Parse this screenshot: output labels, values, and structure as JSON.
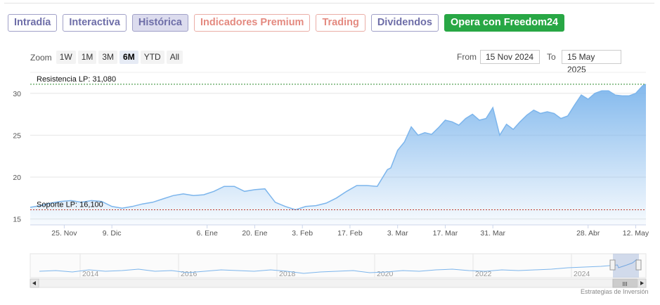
{
  "tabs": [
    {
      "label": "Intradía",
      "style": "purple"
    },
    {
      "label": "Interactiva",
      "style": "purple"
    },
    {
      "label": "Histórica",
      "style": "purple active"
    },
    {
      "label": "Indicadores Premium",
      "style": "salmon"
    },
    {
      "label": "Trading",
      "style": "salmon"
    },
    {
      "label": "Dividendos",
      "style": "purple"
    },
    {
      "label": "Opera con Freedom24",
      "style": "green"
    }
  ],
  "zoom": {
    "label": "Zoom",
    "buttons": [
      "1W",
      "1M",
      "3M",
      "6M",
      "YTD",
      "All"
    ],
    "selected": "6M"
  },
  "range": {
    "from_label": "From",
    "from_value": "15 Nov 2024",
    "to_label": "To",
    "to_value": "15 May 2025"
  },
  "credit": "Estrategias de Inversión",
  "colors": {
    "line": "#7cb5ec",
    "resistance": "#2e8b2e",
    "support": "#c0392b",
    "accent_green": "#28a745"
  },
  "chart_data": {
    "type": "area",
    "x_tick_labels": [
      "25. Nov",
      "9. Dic",
      "6. Ene",
      "20. Ene",
      "3. Feb",
      "17. Feb",
      "3. Mar",
      "17. Mar",
      "31. Mar",
      "28. Abr",
      "12. May"
    ],
    "x_tick_days": [
      10,
      24,
      52,
      66,
      80,
      94,
      108,
      122,
      136,
      164,
      178
    ],
    "y_ticks": [
      15,
      20,
      25,
      30
    ],
    "ylim": [
      14.3,
      32.5
    ],
    "xlim": [
      0,
      181
    ],
    "grid": true,
    "series": [
      {
        "x": [
          0,
          3,
          6,
          9,
          12,
          15,
          18,
          21,
          24,
          27,
          30,
          33,
          36,
          39,
          42,
          45,
          48,
          51,
          54,
          57,
          60,
          63,
          66,
          69,
          72,
          75,
          78,
          81,
          84,
          87,
          90,
          93,
          96,
          99,
          102,
          105,
          106,
          108,
          110,
          112,
          114,
          116,
          118,
          120,
          122,
          124,
          126,
          128,
          130,
          132,
          134,
          136,
          138,
          140,
          142,
          144,
          146,
          148,
          150,
          152,
          154,
          156,
          158,
          160,
          162,
          164,
          166,
          168,
          170,
          172,
          174,
          176,
          178,
          180,
          181
        ],
        "values": [
          16.4,
          16.6,
          16.9,
          17.1,
          17.2,
          17.0,
          17.2,
          17.1,
          16.5,
          16.3,
          16.5,
          16.8,
          17.0,
          17.4,
          17.8,
          18.0,
          17.8,
          17.9,
          18.3,
          18.9,
          18.9,
          18.3,
          18.5,
          18.6,
          17.0,
          16.5,
          16.1,
          16.5,
          16.6,
          16.9,
          17.5,
          18.3,
          19.0,
          19.0,
          18.9,
          20.9,
          21.1,
          23.2,
          24.2,
          26.0,
          25.0,
          25.3,
          25.1,
          25.9,
          26.8,
          26.6,
          26.2,
          27.0,
          27.5,
          26.8,
          27.0,
          28.3,
          25.0,
          26.3,
          25.7,
          26.6,
          27.4,
          28.0,
          27.6,
          27.8,
          27.6,
          27.0,
          27.3,
          28.6,
          29.8,
          29.3,
          30.0,
          30.3,
          30.3,
          29.8,
          29.7,
          29.7,
          30.0,
          30.9,
          31.08
        ]
      }
    ],
    "annotations": [
      {
        "label": "Resistencia LP: 31,080",
        "value": 31.08
      },
      {
        "label": "Soporte LP: 16,100",
        "value": 16.1
      }
    ],
    "navigator": {
      "year_labels": [
        "2014",
        "2016",
        "2018",
        "2020",
        "2022",
        "2024"
      ],
      "scroll_handle_label": "III"
    }
  }
}
